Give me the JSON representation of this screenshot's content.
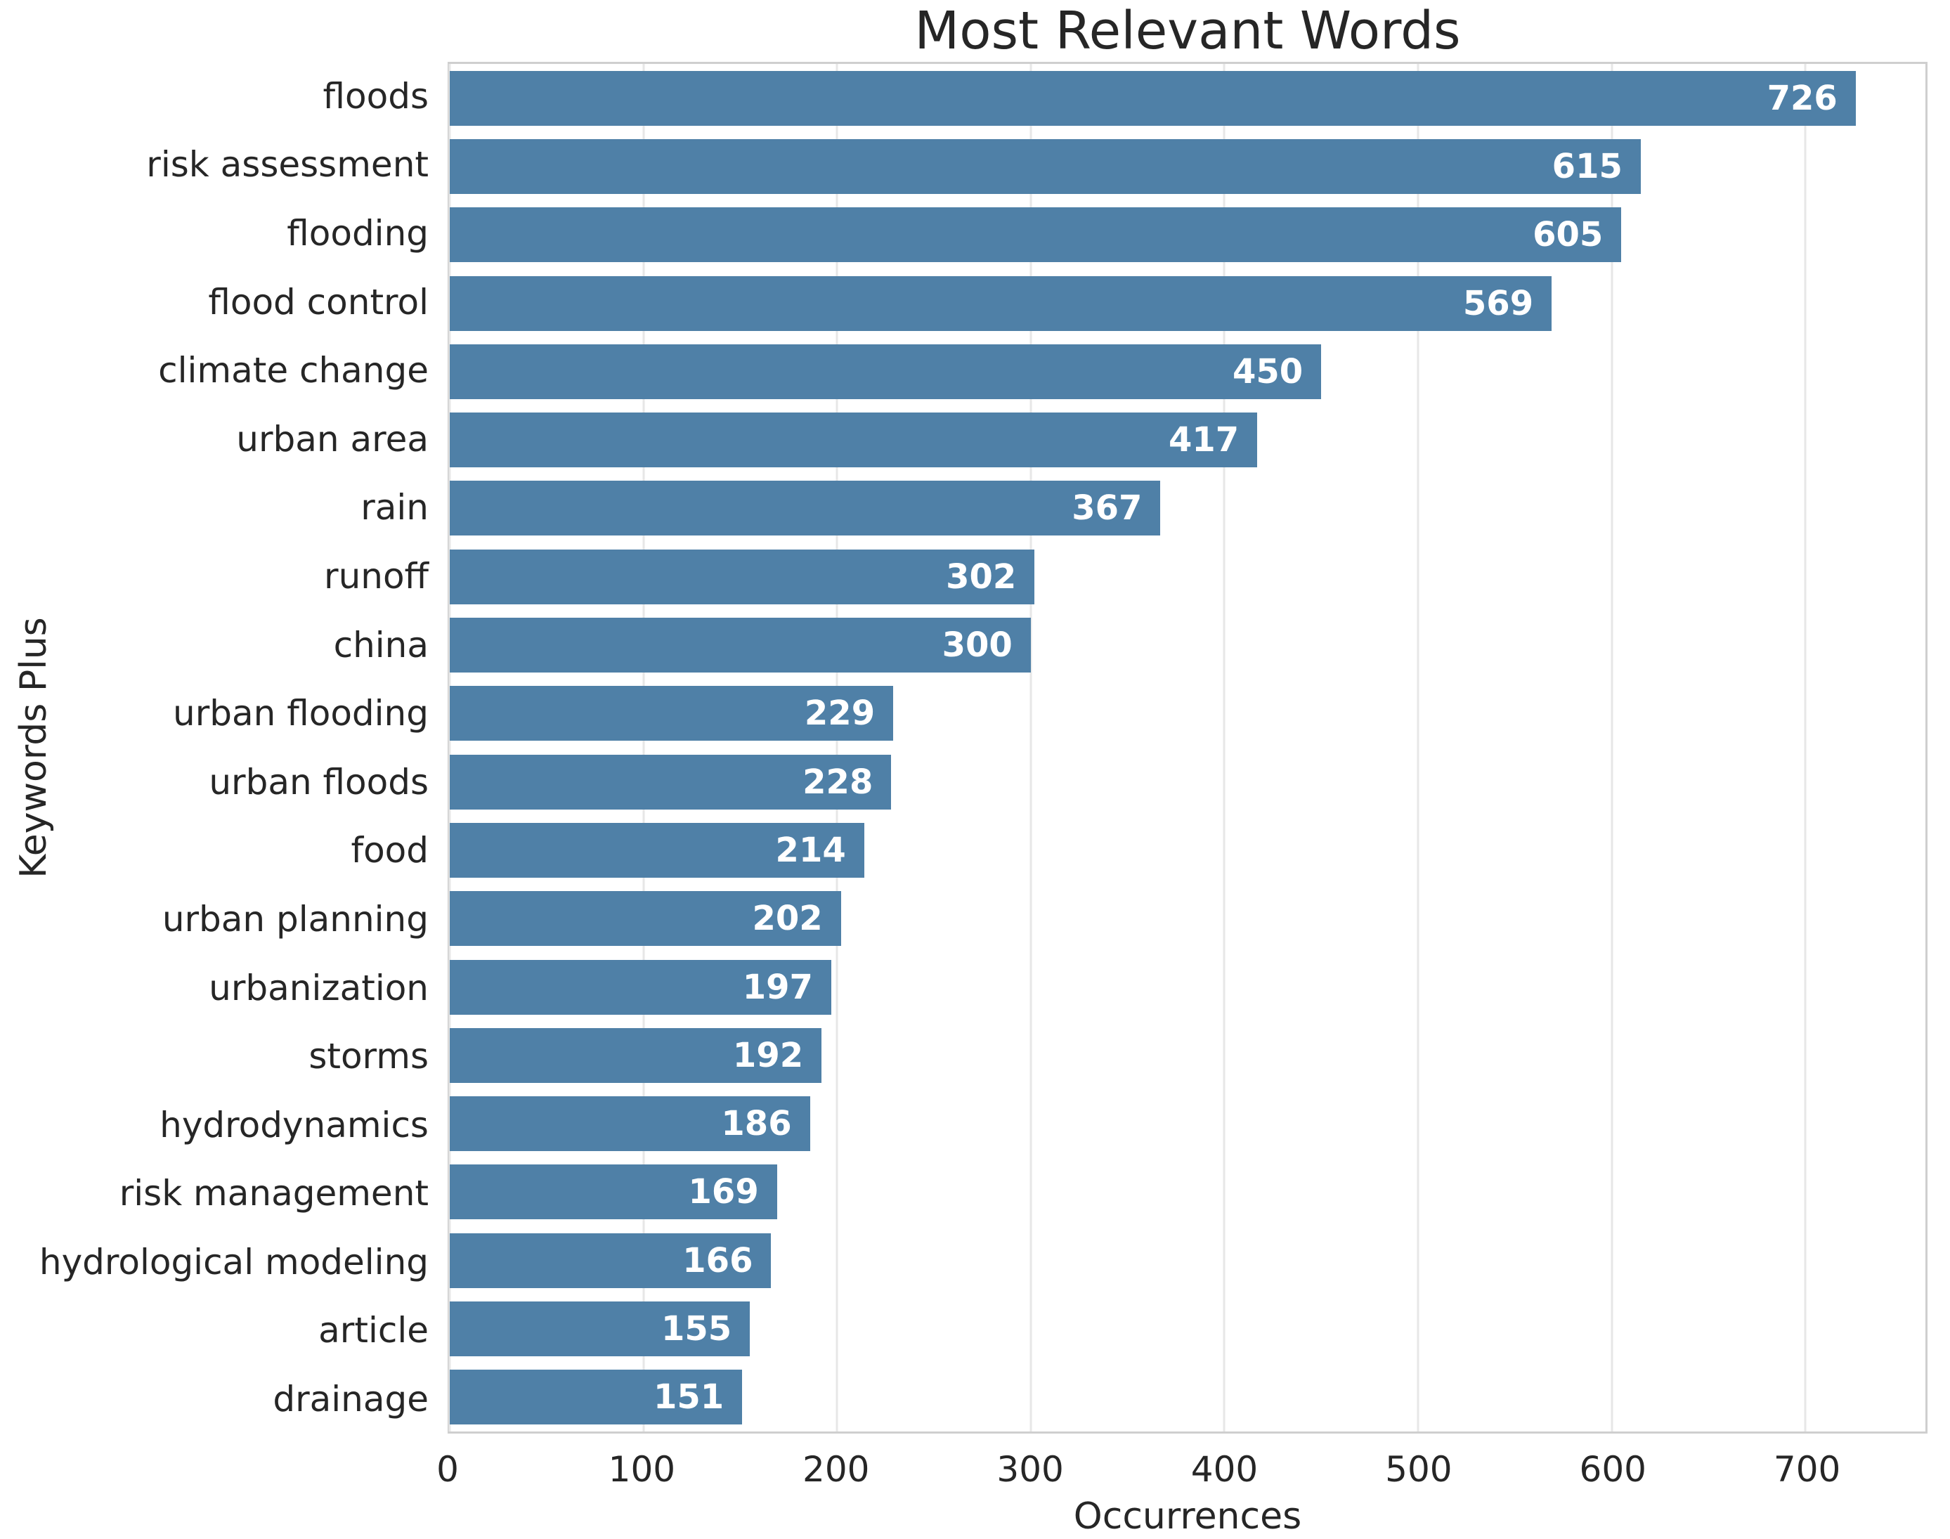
{
  "chart_data": {
    "type": "bar",
    "orientation": "horizontal",
    "title": "Most Relevant Words",
    "xlabel": "Occurrences",
    "ylabel": "Keywords Plus",
    "categories": [
      "floods",
      "risk assessment",
      "flooding",
      "flood control",
      "climate change",
      "urban area",
      "rain",
      "runoff",
      "china",
      "urban flooding",
      "urban floods",
      "food",
      "urban planning",
      "urbanization",
      "storms",
      "hydrodynamics",
      "risk management",
      "hydrological modeling",
      "article",
      "drainage"
    ],
    "values": [
      726,
      615,
      605,
      569,
      450,
      417,
      367,
      302,
      300,
      229,
      228,
      214,
      202,
      197,
      192,
      186,
      169,
      166,
      155,
      151
    ],
    "xticks": [
      0,
      100,
      200,
      300,
      400,
      500,
      600,
      700
    ],
    "xlim": [
      0,
      762
    ],
    "grid": "vertical",
    "bar_color": "#4f80a7",
    "value_label_color": "#ffffff",
    "gridline_color": "#e7e7e7"
  }
}
